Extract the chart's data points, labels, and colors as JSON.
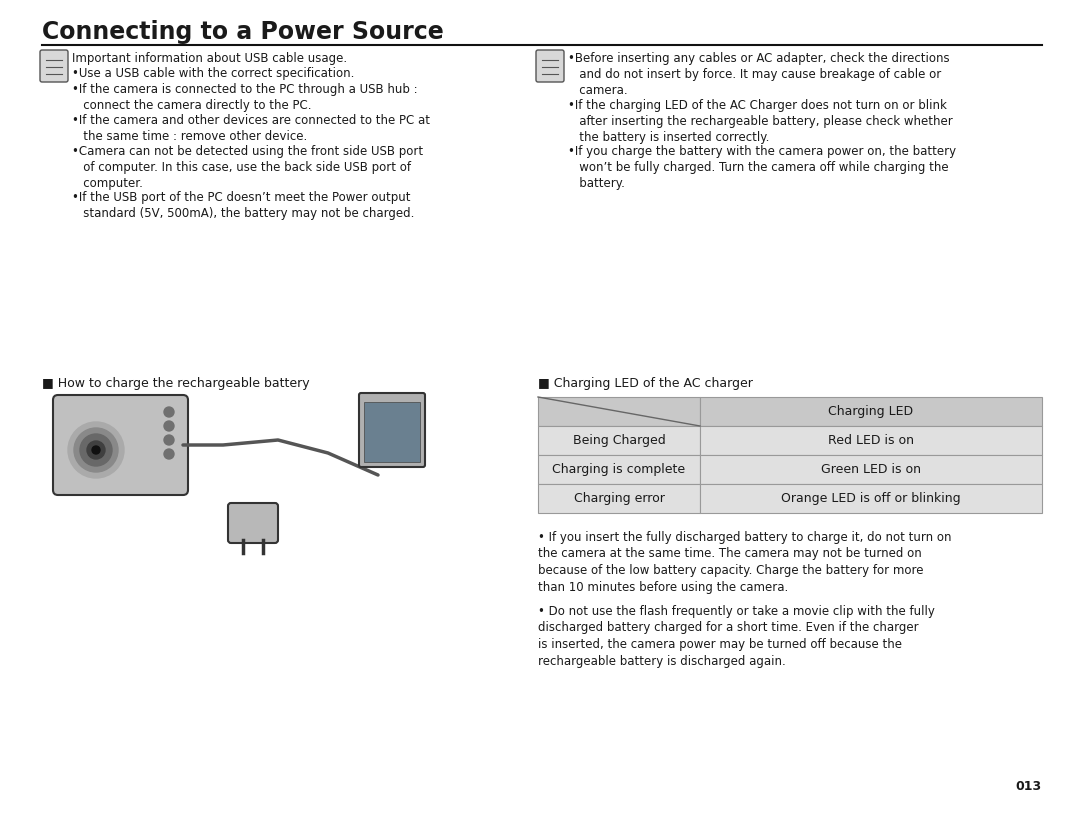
{
  "title": "Connecting to a Power Source",
  "bg": "#ffffff",
  "fg": "#1a1a1a",
  "page_num": "013",
  "left_note_header": "Important information about USB cable usage.",
  "left_note_bullets": [
    "Use a USB cable with the correct specification.",
    "If the camera is connected to the PC through a USB hub :\n   connect the camera directly to the PC.",
    "If the camera and other devices are connected to the PC at\n   the same time : remove other device.",
    "Camera can not be detected using the front side USB port\n   of computer. In this case, use the back side USB port of\n   computer.",
    "If the USB port of the PC doesn’t meet the Power output\n   standard (5V, 500mA), the battery may not be charged."
  ],
  "right_note_bullets": [
    "Before inserting any cables or AC adapter, check the directions\n   and do not insert by force. It may cause breakage of cable or\n   camera.",
    "If the charging LED of the AC Charger does not turn on or blink\n   after inserting the rechargeable battery, please check whether\n   the battery is inserted correctly.",
    "If you charge the battery with the camera power on, the battery\n   won’t be fully charged. Turn the camera off while charging the\n   battery."
  ],
  "left_sub_header": "■ How to charge the rechargeable battery",
  "right_sub_header": "■ Charging LED of the AC charger",
  "table_header_col2": "Charging LED",
  "table_rows": [
    [
      "Being Charged",
      "Red LED is on"
    ],
    [
      "Charging is complete",
      "Green LED is on"
    ],
    [
      "Charging error",
      "Orange LED is off or blinking"
    ]
  ],
  "table_header_bg": "#c8c8c8",
  "table_row_bg": "#e0e0e0",
  "table_border": "#999999",
  "bottom_bullets": [
    "If you insert the fully discharged battery to charge it, do not turn on\nthe camera at the same time. The camera may not be turned on\nbecause of the low battery capacity. Charge the battery for more\nthan 10 minutes before using the camera.",
    "Do not use the flash frequently or take a movie clip with the fully\ndischarged battery charged for a short time. Even if the charger\nis inserted, the camera power may be turned off because the\nrechargeable battery is discharged again."
  ]
}
